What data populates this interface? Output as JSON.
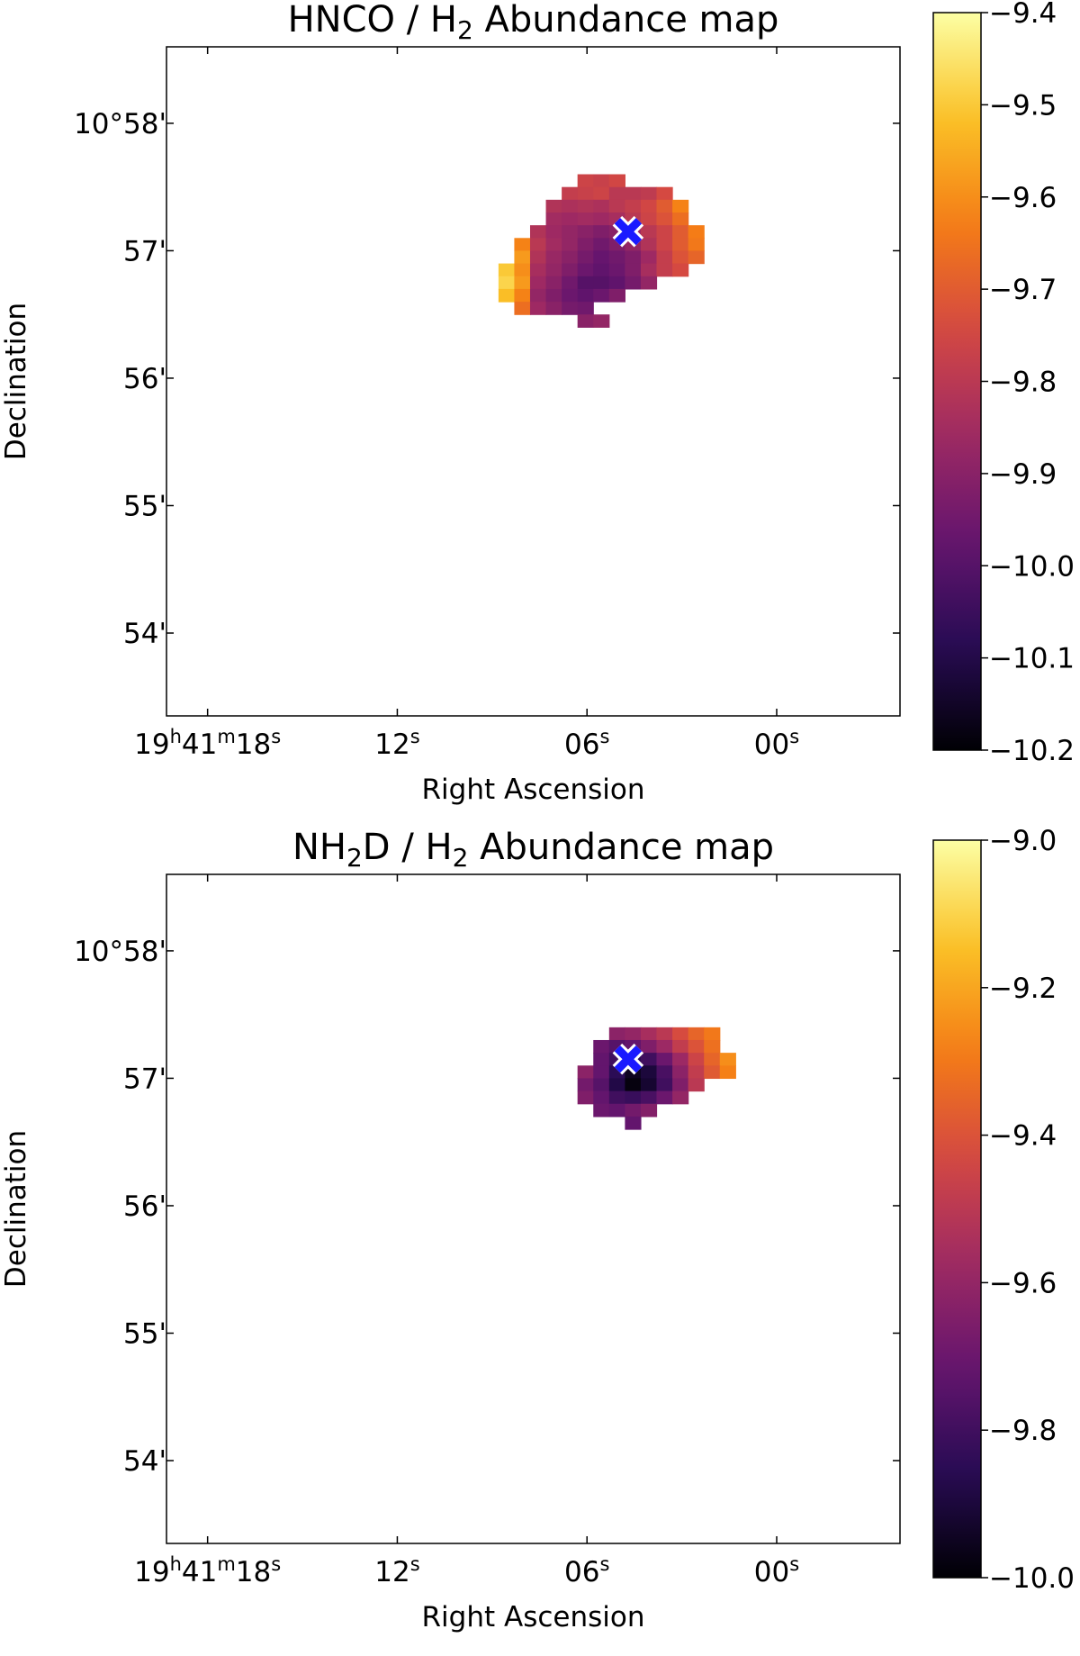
{
  "chart_data": [
    {
      "type": "heatmap",
      "title_parts": [
        "HNCO / H",
        "2",
        " Abundance map"
      ],
      "xlabel": "Right Ascension",
      "ylabel": "Declination",
      "x_ticks": [
        {
          "pos": 18,
          "parts": [
            "19",
            "h",
            "41",
            "m",
            "18",
            "s"
          ]
        },
        {
          "pos": 12,
          "parts": [
            "12",
            "s"
          ]
        },
        {
          "pos": 6,
          "parts": [
            "06",
            "s"
          ]
        },
        {
          "pos": 0,
          "parts": [
            "00",
            "s"
          ]
        }
      ],
      "y_ticks": [
        {
          "pos": 58,
          "label": "10°58'"
        },
        {
          "pos": 57,
          "label": "57'"
        },
        {
          "pos": 56,
          "label": "56'"
        },
        {
          "pos": 55,
          "label": "55'"
        },
        {
          "pos": 54,
          "label": "54'"
        }
      ],
      "xlim": [
        19.3,
        -3.9
      ],
      "ylim": [
        53.35,
        58.6
      ],
      "colorbar": {
        "cmap": "inferno",
        "range": [
          -10.2,
          -9.4
        ],
        "ticks": [
          "−9.4",
          "−9.5",
          "−9.6",
          "−9.7",
          "−9.8",
          "−9.9",
          "−10.0",
          "−10.1",
          "−10.2"
        ],
        "tick_values": [
          -9.4,
          -9.5,
          -9.6,
          -9.7,
          -9.8,
          -9.9,
          -10.0,
          -10.1,
          -10.2
        ]
      },
      "source_marker": {
        "symbol": "X",
        "color": "#1a1aff",
        "ra_s": 4.7,
        "dec_min": 57.15
      },
      "pixel_size": {
        "ra_s": 0.5,
        "dec_min": 0.1
      },
      "rows": [
        {
          "dec": 57.55,
          "ra_start": 6.3,
          "values": [
            -9.76,
            -9.77,
            -9.75
          ]
        },
        {
          "dec": 57.45,
          "ra_start": 6.8,
          "values": [
            -9.78,
            -9.77,
            -9.76,
            -9.8,
            -9.8,
            -9.79,
            -9.74
          ]
        },
        {
          "dec": 57.35,
          "ra_start": 7.3,
          "values": [
            -9.82,
            -9.83,
            -9.82,
            -9.83,
            -9.8,
            -9.78,
            -9.75,
            -9.7,
            -9.62
          ]
        },
        {
          "dec": 57.25,
          "ra_start": 7.3,
          "values": [
            -9.85,
            -9.86,
            -9.85,
            -9.86,
            -9.84,
            -9.8,
            -9.76,
            -9.72,
            -9.66
          ]
        },
        {
          "dec": 57.15,
          "ra_start": 7.8,
          "values": [
            -9.82,
            -9.86,
            -9.88,
            -9.9,
            -9.92,
            -9.9,
            -9.86,
            -9.8,
            -9.76,
            -9.7,
            -9.63
          ]
        },
        {
          "dec": 57.05,
          "ra_start": 8.3,
          "values": [
            -9.62,
            -9.8,
            -9.85,
            -9.88,
            -9.92,
            -9.95,
            -9.92,
            -9.88,
            -9.82,
            -9.76,
            -9.7,
            -9.64
          ]
        },
        {
          "dec": 56.95,
          "ra_start": 8.3,
          "values": [
            -9.58,
            -9.82,
            -9.87,
            -9.9,
            -9.94,
            -9.97,
            -9.95,
            -9.92,
            -9.86,
            -9.78,
            -9.72,
            -9.68
          ]
        },
        {
          "dec": 56.85,
          "ra_start": 8.8,
          "values": [
            -9.5,
            -9.6,
            -9.84,
            -9.88,
            -9.92,
            -9.96,
            -9.98,
            -9.96,
            -9.92,
            -9.84,
            -9.78,
            -9.74
          ]
        },
        {
          "dec": 56.75,
          "ra_start": 8.8,
          "values": [
            -9.48,
            -9.58,
            -9.86,
            -9.9,
            -9.95,
            -10.0,
            -10.0,
            -9.98,
            -9.94,
            -9.88
          ]
        },
        {
          "dec": 56.65,
          "ra_start": 8.8,
          "values": [
            -9.52,
            -9.62,
            -9.88,
            -9.92,
            -9.96,
            -9.98,
            -9.96,
            -9.92
          ]
        },
        {
          "dec": 56.55,
          "ra_start": 8.3,
          "values": [
            -9.66,
            -9.86,
            -9.9,
            -9.94,
            -9.95
          ]
        },
        {
          "dec": 56.45,
          "ra_start": 6.3,
          "values": [
            -9.9,
            -9.88
          ]
        }
      ]
    },
    {
      "type": "heatmap",
      "title_parts": [
        "NH",
        "2",
        "D / H",
        "2",
        " Abundance map"
      ],
      "xlabel": "Right Ascension",
      "ylabel": "Declination",
      "x_ticks": [
        {
          "pos": 18,
          "parts": [
            "19",
            "h",
            "41",
            "m",
            "18",
            "s"
          ]
        },
        {
          "pos": 12,
          "parts": [
            "12",
            "s"
          ]
        },
        {
          "pos": 6,
          "parts": [
            "06",
            "s"
          ]
        },
        {
          "pos": 0,
          "parts": [
            "00",
            "s"
          ]
        }
      ],
      "y_ticks": [
        {
          "pos": 58,
          "label": "10°58'"
        },
        {
          "pos": 57,
          "label": "57'"
        },
        {
          "pos": 56,
          "label": "56'"
        },
        {
          "pos": 55,
          "label": "55'"
        },
        {
          "pos": 54,
          "label": "54'"
        }
      ],
      "xlim": [
        19.3,
        -3.9
      ],
      "ylim": [
        53.35,
        58.6
      ],
      "colorbar": {
        "cmap": "inferno",
        "range": [
          -10.0,
          -9.0
        ],
        "ticks": [
          "−9.0",
          "−9.2",
          "−9.4",
          "−9.6",
          "−9.8",
          "−10.0"
        ],
        "tick_values": [
          -9.0,
          -9.2,
          -9.4,
          -9.6,
          -9.8,
          -10.0
        ]
      },
      "source_marker": {
        "symbol": "X",
        "color": "#1a1aff",
        "ra_s": 4.7,
        "dec_min": 57.15
      },
      "pixel_size": {
        "ra_s": 0.5,
        "dec_min": 0.1
      },
      "rows": [
        {
          "dec": 57.35,
          "ra_start": 5.3,
          "values": [
            -9.62,
            -9.6,
            -9.55,
            -9.5,
            -9.42,
            -9.35,
            -9.3
          ]
        },
        {
          "dec": 57.25,
          "ra_start": 5.8,
          "values": [
            -9.7,
            -9.75,
            -9.72,
            -9.65,
            -9.58,
            -9.48,
            -9.4,
            -9.32
          ]
        },
        {
          "dec": 57.15,
          "ra_start": 5.8,
          "values": [
            -9.72,
            -9.8,
            -9.85,
            -9.8,
            -9.7,
            -9.58,
            -9.45,
            -9.35,
            -9.25
          ]
        },
        {
          "dec": 57.05,
          "ra_start": 6.3,
          "values": [
            -9.62,
            -9.72,
            -9.85,
            -9.95,
            -9.9,
            -9.78,
            -9.62,
            -9.48,
            -9.38,
            -9.28
          ]
        },
        {
          "dec": 56.95,
          "ra_start": 6.3,
          "values": [
            -9.68,
            -9.75,
            -9.88,
            -9.98,
            -9.92,
            -9.8,
            -9.65,
            -9.5
          ]
        },
        {
          "dec": 56.85,
          "ra_start": 6.3,
          "values": [
            -9.65,
            -9.72,
            -9.8,
            -9.82,
            -9.78,
            -9.7,
            -9.6
          ]
        },
        {
          "dec": 56.75,
          "ra_start": 5.8,
          "values": [
            -9.7,
            -9.72,
            -9.68,
            -9.64
          ]
        },
        {
          "dec": 56.65,
          "ra_start": 4.8,
          "values": [
            -9.72
          ]
        }
      ]
    }
  ]
}
